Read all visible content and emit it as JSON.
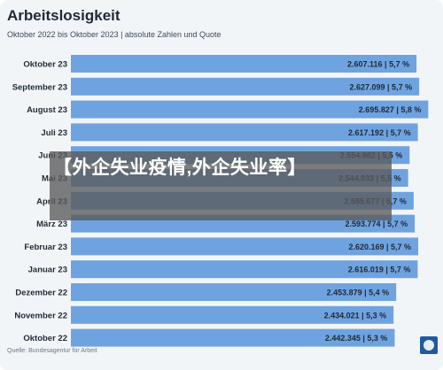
{
  "chart_data": {
    "type": "bar",
    "orientation": "horizontal",
    "title": "Arbeitslosigkeit",
    "subtitle": "Oktober 2022 bis Oktober 2023 | absolute Zahlen und Quote",
    "source": "Quelle: Bundesagentur für Arbeit",
    "categories": [
      "Oktober 23",
      "September 23",
      "August 23",
      "Juli 23",
      "Juni 23",
      "Mai 23",
      "April 23",
      "März 23",
      "Februar 23",
      "Januar 23",
      "Dezember 22",
      "November 22",
      "Oktober 22"
    ],
    "values": [
      2607116,
      2627099,
      2695827,
      2617192,
      2554982,
      2544033,
      2585677,
      2593774,
      2620169,
      2616019,
      2453879,
      2434021,
      2442345
    ],
    "data_labels": [
      "2.607.116 | 5,7 %",
      "2.627.099 | 5,7 %",
      "2.695.827 | 5,8 %",
      "2.617.192 | 5,7 %",
      "2.554.982 | 5,5 %",
      "2.544.033 | 5,5 %",
      "2.585.677 | 5,7 %",
      "2.593.774 | 5,7 %",
      "2.620.169 | 5,7 %",
      "2.616.019 | 5,7 %",
      "2.453.879 | 5,4 %",
      "2.434.021 | 5,3 %",
      "2.442.345 | 5,3 %"
    ],
    "xlim": [
      0,
      2700000
    ],
    "grid": false,
    "bar_color": "#6fa3e0",
    "label_color": "#1e2a36"
  },
  "overlay": {
    "text": "【外企失业疫情,外企失业率】"
  }
}
